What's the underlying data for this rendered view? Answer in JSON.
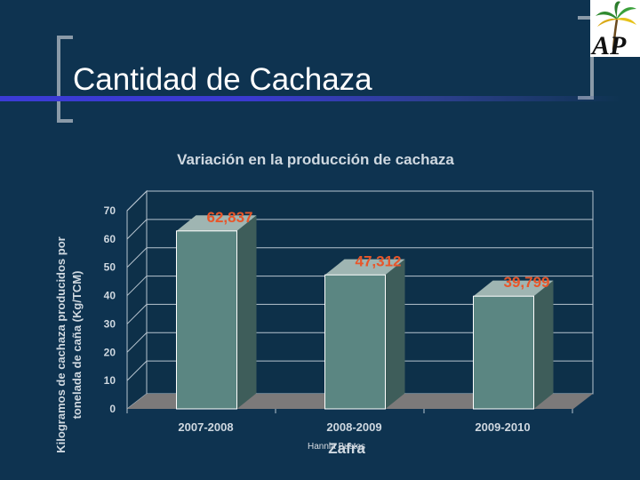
{
  "slide": {
    "title": "Cantidad de Cachaza",
    "credit": "Hannia Bustos",
    "logo_text": "AP"
  },
  "colors": {
    "background": "#0e3350",
    "bar_front": "#5b8682",
    "bar_side": "#3e5d5a",
    "bar_top": "#9fb5b2",
    "value_label": "#e8562a",
    "chart_text": "#cfd8e0",
    "grid": "#b7c4cf"
  },
  "chart_data": {
    "type": "bar",
    "title": "Variación en la producción de cachaza",
    "xlabel": "Zafra",
    "ylabel_lines": [
      "Kilogramos de cachaza producidos por",
      "tonelada de caña (Kg/TCM)"
    ],
    "categories": [
      "2007-2008",
      "2008-2009",
      "2009-2010"
    ],
    "values": [
      62.837,
      47.312,
      39.799
    ],
    "value_labels": [
      "62,837",
      "47,312",
      "39,799"
    ],
    "ylim": [
      0,
      70
    ],
    "yticks": [
      "0",
      "10",
      "20",
      "30",
      "40",
      "50",
      "60",
      "70"
    ],
    "grid": true
  }
}
